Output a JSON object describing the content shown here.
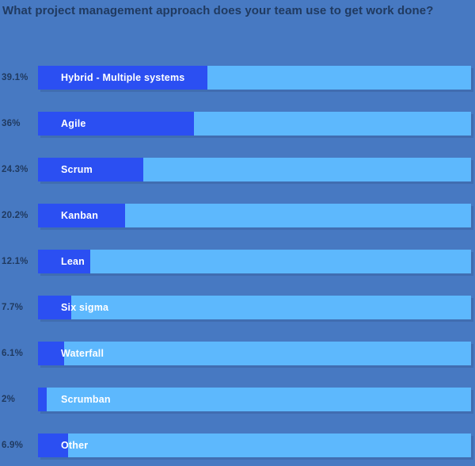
{
  "chart_data": {
    "type": "bar",
    "orientation": "horizontal",
    "title": "What project management approach does your team use to get work done?",
    "categories": [
      "Hybrid - Multiple systems",
      "Agile",
      "Scrum",
      "Kanban",
      "Lean",
      "Six sigma",
      "Waterfall",
      "Scrumban",
      "Other"
    ],
    "values": [
      39.1,
      36,
      24.3,
      20.2,
      12.1,
      7.7,
      6.1,
      2,
      6.9
    ],
    "value_labels": [
      "39.1%",
      "36%",
      "24.3%",
      "20.2%",
      "12.1%",
      "7.7%",
      "6.1%",
      "2%",
      "6.9%"
    ],
    "xlim": [
      0,
      100
    ],
    "legend": "none",
    "grid": "off",
    "colors": {
      "background": "#4779c2",
      "bar_fill": "#2b4ff2",
      "bar_track": "#5db8fd",
      "title_text": "#203a60",
      "percent_text": "#203a60",
      "bar_label_text": "#ffffff"
    }
  }
}
